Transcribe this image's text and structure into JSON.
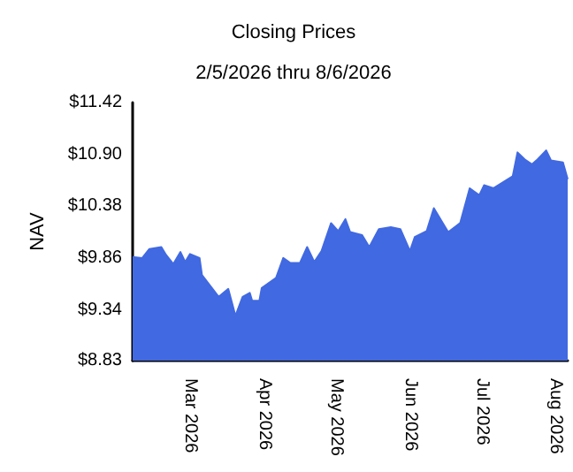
{
  "chart_data": {
    "type": "area",
    "title": "Closing Prices",
    "subtitle": "2/5/2026 thru 8/6/2026",
    "ylabel": "NAV",
    "x": [
      "2026-02-05",
      "2026-02-09",
      "2026-02-12",
      "2026-02-17",
      "2026-02-19",
      "2026-02-22",
      "2026-02-25",
      "2026-02-27",
      "2026-03-01",
      "2026-03-05",
      "2026-03-06",
      "2026-03-13",
      "2026-03-17",
      "2026-03-20",
      "2026-03-23",
      "2026-03-26",
      "2026-03-27",
      "2026-03-30",
      "2026-03-31",
      "2026-04-06",
      "2026-04-09",
      "2026-04-12",
      "2026-04-16",
      "2026-04-19",
      "2026-04-22",
      "2026-04-25",
      "2026-04-29",
      "2026-05-02",
      "2026-05-05",
      "2026-05-07",
      "2026-05-12",
      "2026-05-15",
      "2026-05-19",
      "2026-05-24",
      "2026-05-28",
      "2026-06-01",
      "2026-06-03",
      "2026-06-08",
      "2026-06-11",
      "2026-06-17",
      "2026-06-22",
      "2026-06-26",
      "2026-06-30",
      "2026-07-02",
      "2026-07-06",
      "2026-07-10",
      "2026-07-14",
      "2026-07-16",
      "2026-07-19",
      "2026-07-22",
      "2026-07-24",
      "2026-07-28",
      "2026-07-30",
      "2026-08-04",
      "2026-08-06"
    ],
    "series": [
      {
        "color": "#4169e1",
        "values": [
          9.87,
          9.86,
          9.95,
          9.97,
          9.89,
          9.8,
          9.92,
          9.82,
          9.9,
          9.86,
          9.69,
          9.47,
          9.55,
          9.28,
          9.47,
          9.51,
          9.43,
          9.43,
          9.56,
          9.66,
          9.86,
          9.81,
          9.81,
          9.97,
          9.82,
          9.93,
          10.21,
          10.13,
          10.25,
          10.12,
          10.09,
          9.97,
          10.15,
          10.17,
          10.15,
          9.93,
          10.07,
          10.13,
          10.36,
          10.12,
          10.21,
          10.56,
          10.49,
          10.59,
          10.56,
          10.62,
          10.68,
          10.92,
          10.85,
          10.8,
          10.84,
          10.94,
          10.84,
          10.82,
          10.65
        ]
      }
    ],
    "xlim": [
      "2026-02-05",
      "2026-08-06"
    ],
    "xticks": [
      {
        "value": "2026-03-01",
        "label": "Mar 2026"
      },
      {
        "value": "2026-04-01",
        "label": "Apr 2026"
      },
      {
        "value": "2026-05-01",
        "label": "May 2026"
      },
      {
        "value": "2026-06-01",
        "label": "Jun 2026"
      },
      {
        "value": "2026-07-01",
        "label": "Jul 2026"
      },
      {
        "value": "2026-08-01",
        "label": "Aug 2026"
      }
    ],
    "ylim": [
      8.83,
      11.42
    ],
    "yticks": [
      {
        "value": 8.83,
        "label": "$8.83"
      },
      {
        "value": 9.34,
        "label": "$9.34"
      },
      {
        "value": 9.86,
        "label": "$9.86"
      },
      {
        "value": 10.38,
        "label": "$10.38"
      },
      {
        "value": 10.9,
        "label": "$10.90"
      },
      {
        "value": 11.42,
        "label": "$11.42"
      }
    ],
    "grid": false
  }
}
